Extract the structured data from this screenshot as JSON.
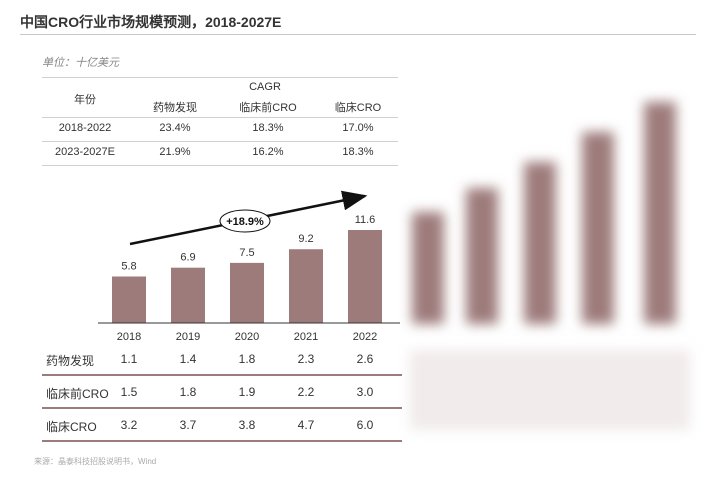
{
  "title": "中国CRO行业市场规模预测，2018-2027E",
  "unit": "单位：十亿美元",
  "cagr_table": {
    "col_year": "年份",
    "group_header": "CAGR",
    "columns": [
      "药物发现",
      "临床前CRO",
      "临床CRO"
    ],
    "rows": [
      {
        "period": "2018-2022",
        "values": [
          "23.4%",
          "18.3%",
          "17.0%"
        ]
      },
      {
        "period": "2023-2027E",
        "values": [
          "21.9%",
          "16.2%",
          "18.3%"
        ]
      }
    ]
  },
  "growth_label": "+18.9%",
  "chart_data": {
    "type": "bar",
    "categories": [
      "2018",
      "2019",
      "2020",
      "2021",
      "2022"
    ],
    "values": [
      5.8,
      6.9,
      7.5,
      9.2,
      11.6
    ],
    "ylim": [
      0,
      14
    ],
    "bar_color": "#9e7b7b",
    "segments_table": [
      {
        "name": "药物发现",
        "values": [
          "1.1",
          "1.4",
          "1.8",
          "2.3",
          "2.6"
        ]
      },
      {
        "name": "临床前CRO",
        "values": [
          "1.5",
          "1.8",
          "1.9",
          "2.2",
          "3.0"
        ]
      },
      {
        "name": "临床CRO",
        "values": [
          "3.2",
          "3.7",
          "3.8",
          "4.7",
          "6.0"
        ]
      }
    ]
  },
  "source": "来源：晶泰科技招股说明书，Wind",
  "colors": {
    "bar": "#9e7b7b",
    "row_rule": "#9e7b7b"
  }
}
